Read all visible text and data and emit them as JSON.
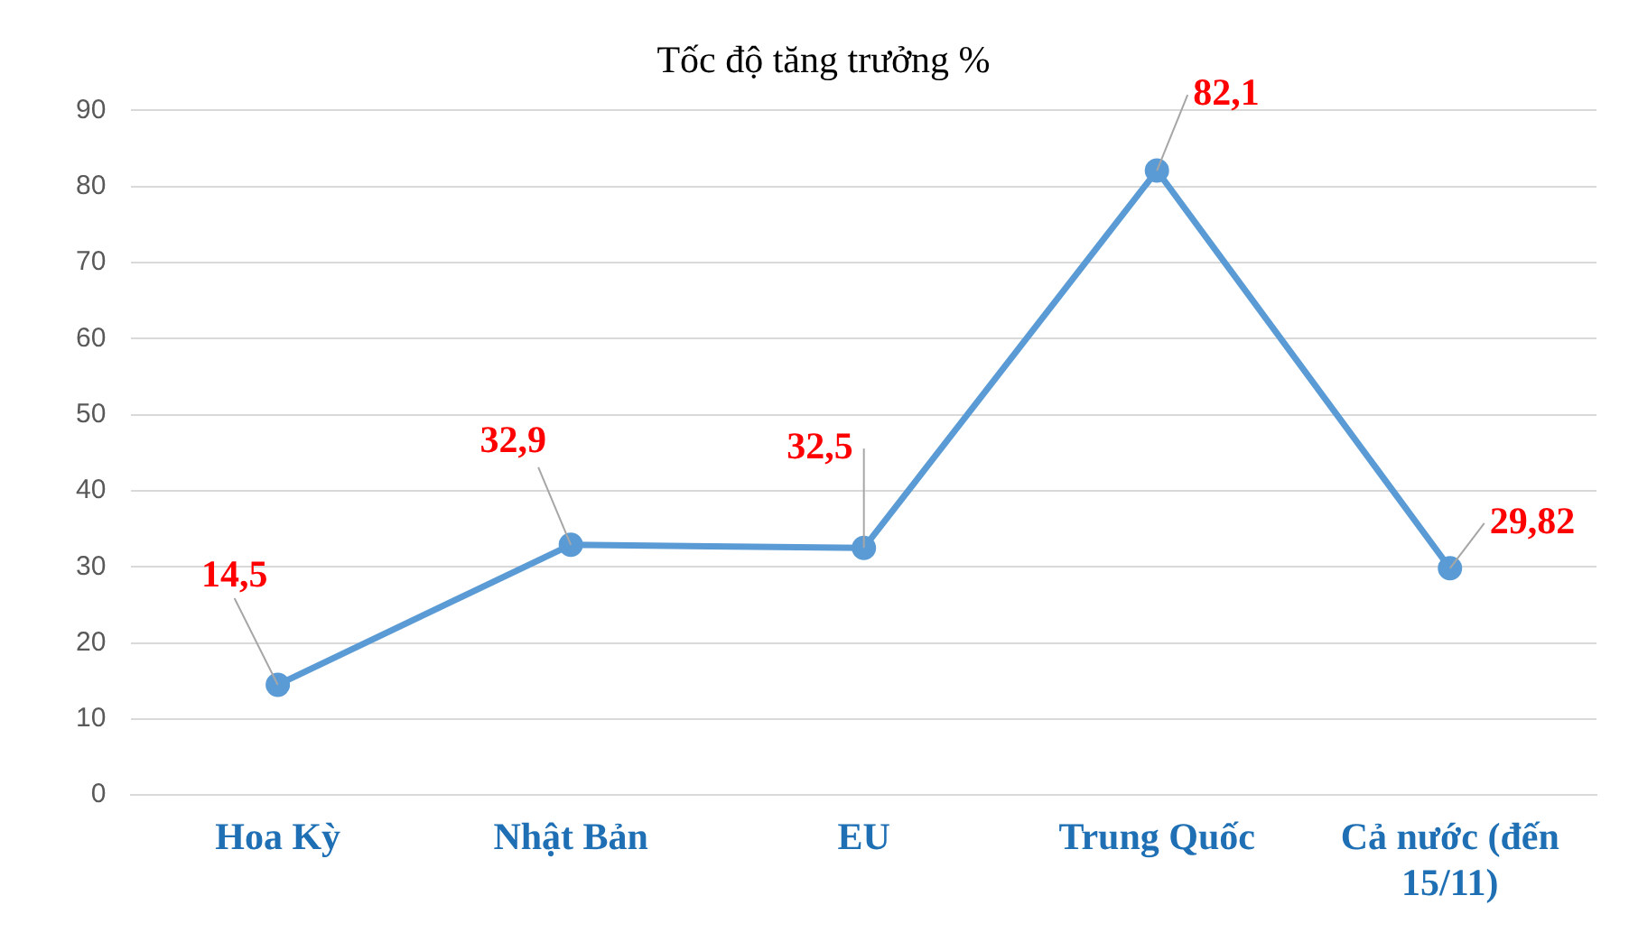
{
  "chart_data": {
    "type": "line",
    "title": "Tốc độ tăng trưởng %",
    "categories": [
      "Hoa Kỳ",
      "Nhật Bản",
      "EU",
      "Trung Quốc",
      "Cả nước (đến 15/11)"
    ],
    "series": [
      {
        "color": "#5b9bd5",
        "values": [
          14.5,
          32.9,
          32.5,
          82.1,
          29.82
        ]
      }
    ],
    "value_labels": [
      "14,5",
      "32,9",
      "32,5",
      "82,1",
      "29,82"
    ],
    "ylim": [
      0,
      90
    ],
    "yticks": [
      0,
      10,
      20,
      30,
      40,
      50,
      60,
      70,
      80,
      90
    ],
    "grid": "y",
    "legend": false,
    "marker": "circle",
    "line_style": "solid"
  }
}
